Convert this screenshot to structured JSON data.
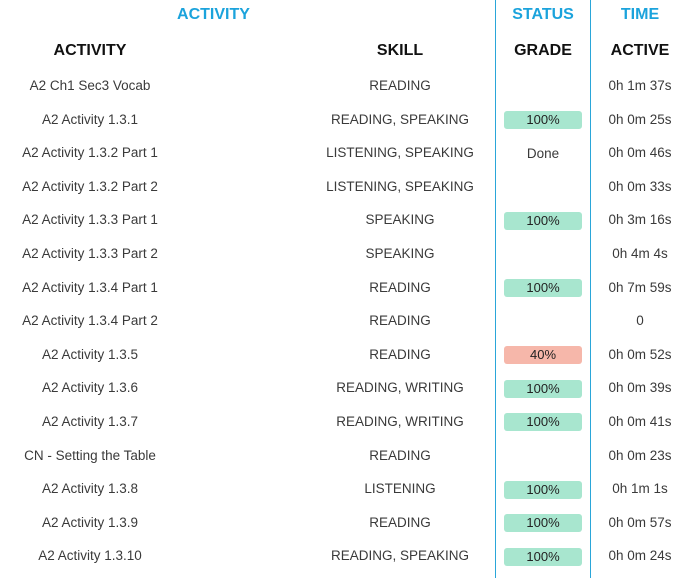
{
  "headers": {
    "group_activity": "ACTIVITY",
    "group_status": "STATUS",
    "group_time": "TIME",
    "activity": "ACTIVITY",
    "skill": "SKILL",
    "grade": "GRADE",
    "active": "ACTIVE"
  },
  "colors": {
    "accent": "#1ba3dc",
    "grade_good": "#a8e6cf",
    "grade_low": "#f6b7aa"
  },
  "rows": [
    {
      "activity": "A2 Ch1 Sec3 Vocab",
      "skill": "READING",
      "grade": "",
      "grade_status": "none",
      "active": "0h 1m 37s"
    },
    {
      "activity": "A2 Activity 1.3.1",
      "skill": "READING, SPEAKING",
      "grade": "100%",
      "grade_status": "good",
      "active": "0h 0m 25s"
    },
    {
      "activity": "A2 Activity 1.3.2 Part 1",
      "skill": "LISTENING, SPEAKING",
      "grade": "Done",
      "grade_status": "plain",
      "active": "0h 0m 46s"
    },
    {
      "activity": "A2 Activity 1.3.2 Part 2",
      "skill": "LISTENING, SPEAKING",
      "grade": "",
      "grade_status": "none",
      "active": "0h 0m 33s"
    },
    {
      "activity": "A2 Activity 1.3.3 Part 1",
      "skill": "SPEAKING",
      "grade": "100%",
      "grade_status": "good",
      "active": "0h 3m 16s"
    },
    {
      "activity": "A2 Activity 1.3.3 Part 2",
      "skill": "SPEAKING",
      "grade": "",
      "grade_status": "none",
      "active": "0h 4m 4s"
    },
    {
      "activity": "A2 Activity 1.3.4 Part 1",
      "skill": "READING",
      "grade": "100%",
      "grade_status": "good",
      "active": "0h 7m 59s"
    },
    {
      "activity": "A2 Activity 1.3.4 Part 2",
      "skill": "READING",
      "grade": "",
      "grade_status": "none",
      "active": "0"
    },
    {
      "activity": "A2 Activity 1.3.5",
      "skill": "READING",
      "grade": "40%",
      "grade_status": "low",
      "active": "0h 0m 52s"
    },
    {
      "activity": "A2 Activity 1.3.6",
      "skill": "READING, WRITING",
      "grade": "100%",
      "grade_status": "good",
      "active": "0h 0m 39s"
    },
    {
      "activity": "A2 Activity 1.3.7",
      "skill": "READING, WRITING",
      "grade": "100%",
      "grade_status": "good",
      "active": "0h 0m 41s"
    },
    {
      "activity": "CN - Setting the Table",
      "skill": "READING",
      "grade": "",
      "grade_status": "none",
      "active": "0h 0m 23s"
    },
    {
      "activity": "A2 Activity 1.3.8",
      "skill": "LISTENING",
      "grade": "100%",
      "grade_status": "good",
      "active": "0h 1m 1s"
    },
    {
      "activity": "A2 Activity 1.3.9",
      "skill": "READING",
      "grade": "100%",
      "grade_status": "good",
      "active": "0h 0m 57s"
    },
    {
      "activity": "A2 Activity 1.3.10",
      "skill": "READING, SPEAKING",
      "grade": "100%",
      "grade_status": "good",
      "active": "0h 0m 24s"
    }
  ]
}
